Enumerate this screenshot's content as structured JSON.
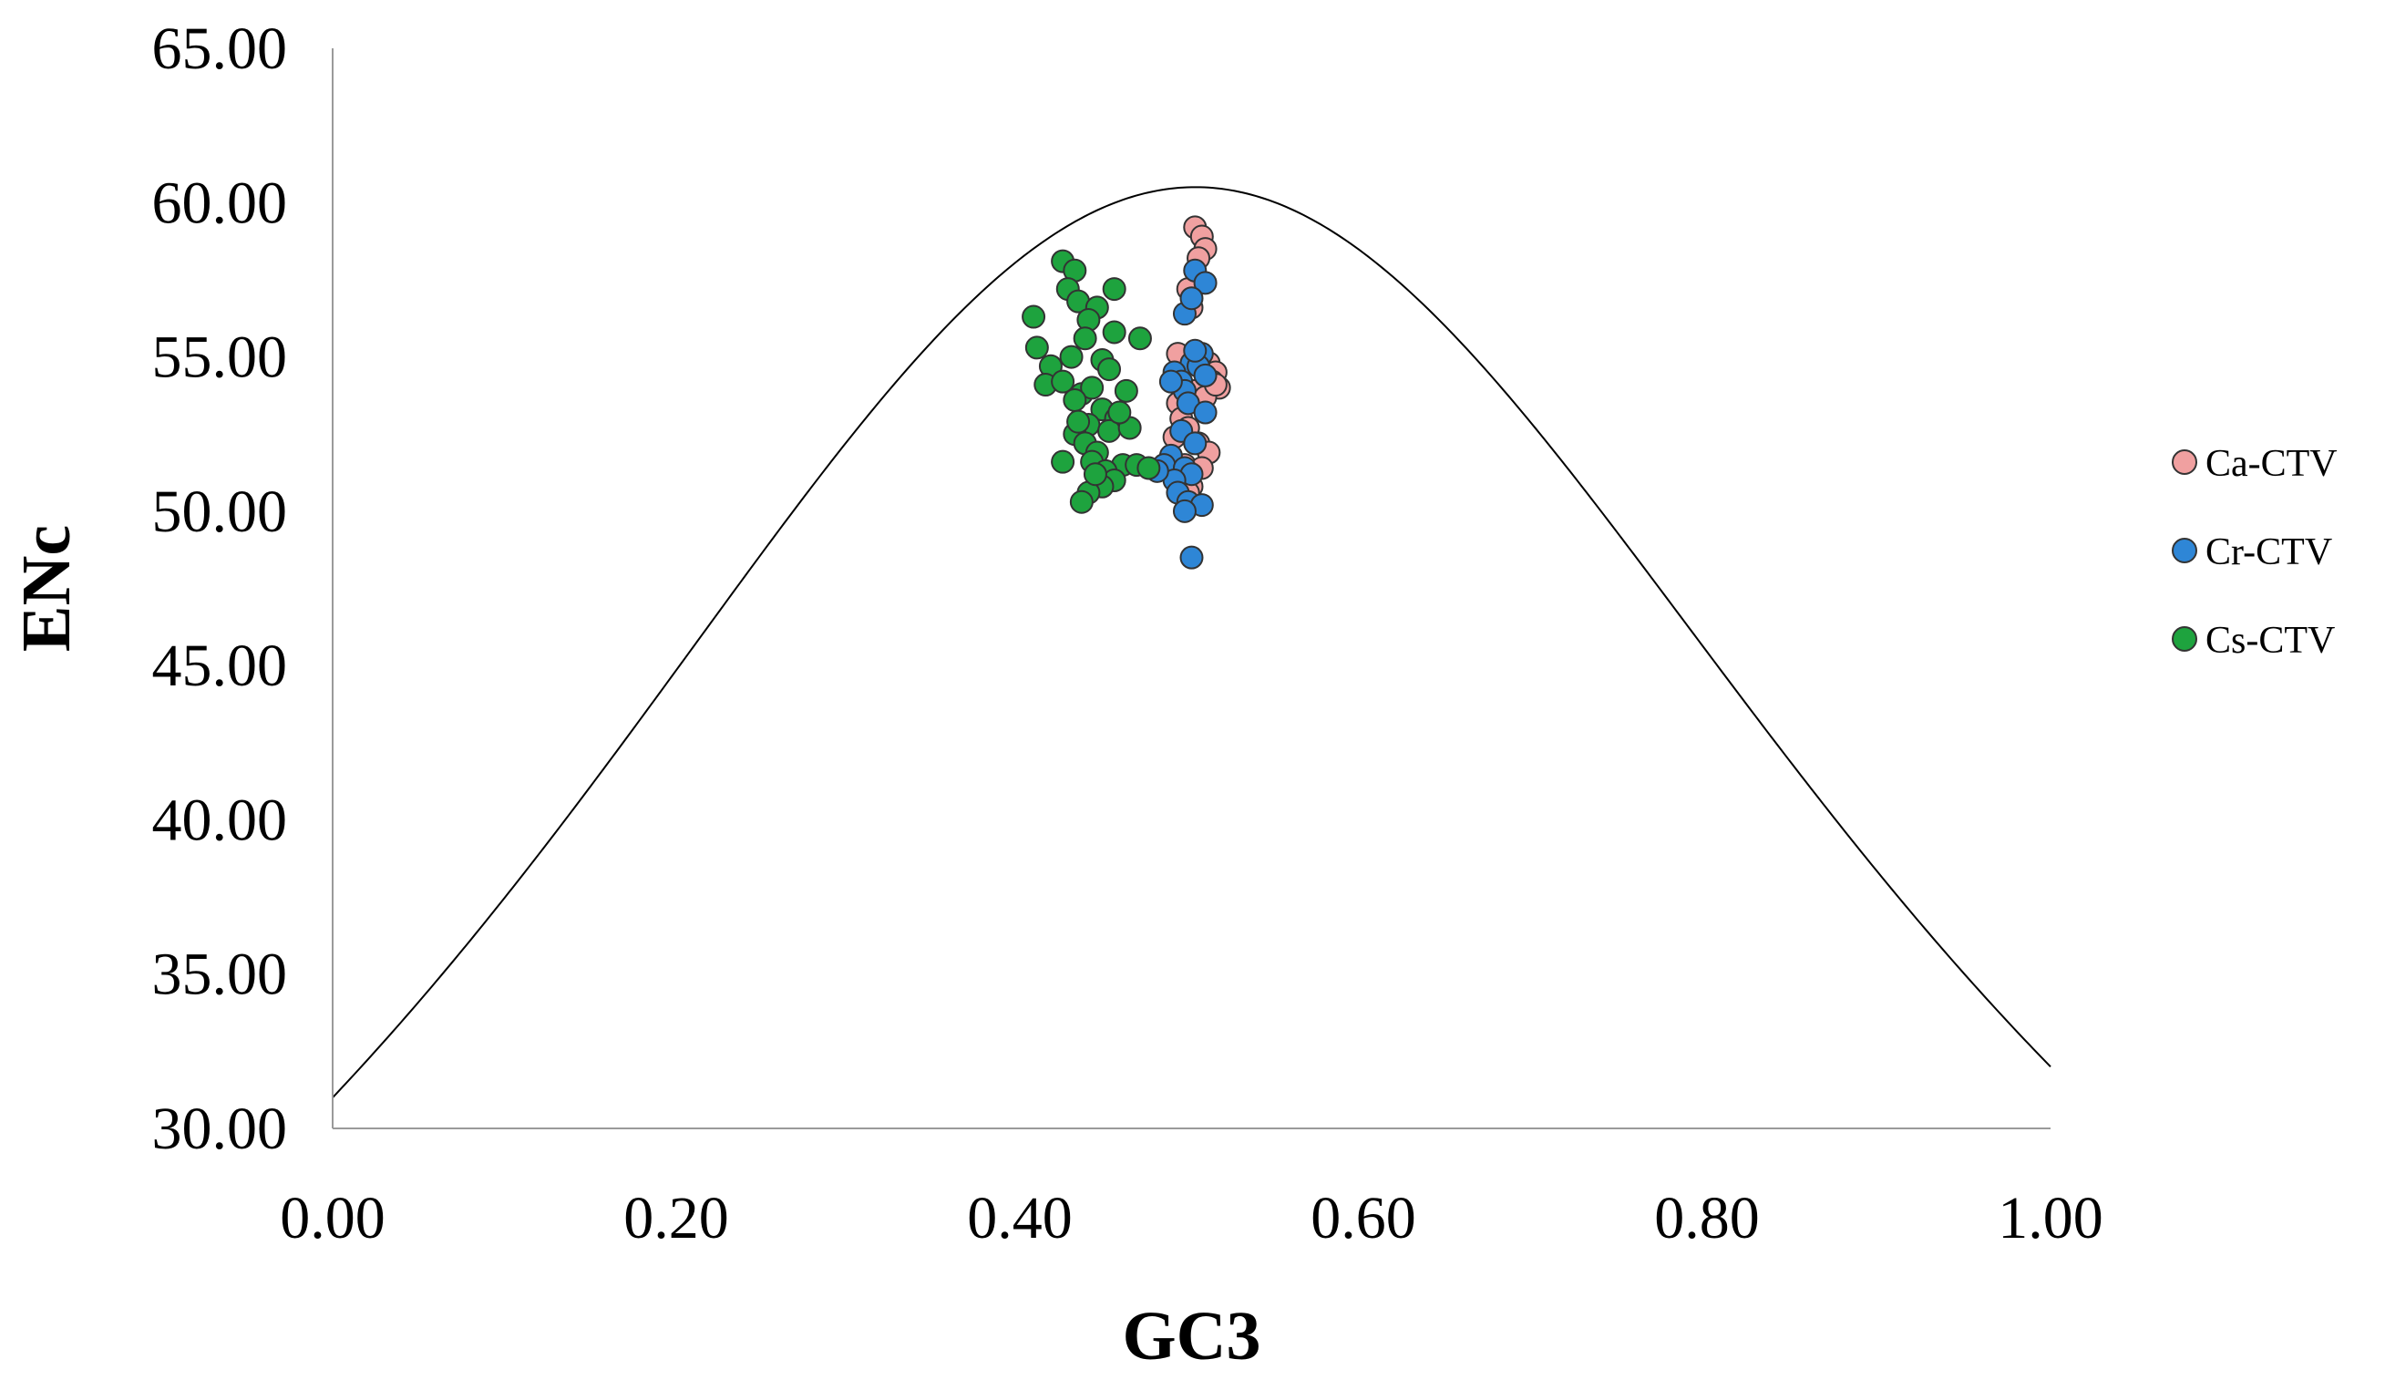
{
  "chart_data": {
    "type": "scatter",
    "title": "",
    "xlabel": "GC3",
    "ylabel": "ENc",
    "xlim": [
      0,
      1
    ],
    "ylim": [
      30,
      65
    ],
    "xticks": [
      "0.00",
      "0.20",
      "0.40",
      "0.60",
      "0.80",
      "1.00"
    ],
    "yticks": [
      "30.00",
      "35.00",
      "40.00",
      "45.00",
      "50.00",
      "55.00",
      "60.00",
      "65.00"
    ],
    "grid": false,
    "legend_position": "right",
    "expected_curve": {
      "description": "ENc = 2 + GC3 + 29/(GC3^2 + (1-GC3)^2)",
      "color": "#000000"
    },
    "series": [
      {
        "name": "Ca-CTV",
        "color": "#f0a0a0",
        "points": [
          [
            0.502,
            59.2
          ],
          [
            0.506,
            58.9
          ],
          [
            0.508,
            58.5
          ],
          [
            0.504,
            58.2
          ],
          [
            0.498,
            57.2
          ],
          [
            0.5,
            56.6
          ],
          [
            0.496,
            55.0
          ],
          [
            0.5,
            54.9
          ],
          [
            0.51,
            54.8
          ],
          [
            0.514,
            54.5
          ],
          [
            0.512,
            54.2
          ],
          [
            0.516,
            54.0
          ],
          [
            0.502,
            53.9
          ],
          [
            0.508,
            53.7
          ],
          [
            0.492,
            53.5
          ],
          [
            0.494,
            53.0
          ],
          [
            0.498,
            52.7
          ],
          [
            0.49,
            52.4
          ],
          [
            0.504,
            52.2
          ],
          [
            0.51,
            51.9
          ],
          [
            0.496,
            51.5
          ],
          [
            0.506,
            51.4
          ],
          [
            0.5,
            50.8
          ],
          [
            0.498,
            50.6
          ],
          [
            0.488,
            51.6
          ],
          [
            0.514,
            54.1
          ],
          [
            0.505,
            55.0
          ],
          [
            0.492,
            55.1
          ]
        ]
      },
      {
        "name": "Cr-CTV",
        "color": "#2e86d6",
        "points": [
          [
            0.502,
            57.8
          ],
          [
            0.508,
            57.4
          ],
          [
            0.496,
            56.4
          ],
          [
            0.5,
            56.9
          ],
          [
            0.506,
            55.1
          ],
          [
            0.5,
            54.8
          ],
          [
            0.49,
            54.5
          ],
          [
            0.494,
            54.2
          ],
          [
            0.504,
            54.7
          ],
          [
            0.508,
            54.4
          ],
          [
            0.496,
            53.9
          ],
          [
            0.498,
            53.5
          ],
          [
            0.508,
            53.2
          ],
          [
            0.494,
            52.6
          ],
          [
            0.502,
            52.2
          ],
          [
            0.488,
            51.8
          ],
          [
            0.484,
            51.5
          ],
          [
            0.496,
            51.4
          ],
          [
            0.5,
            51.2
          ],
          [
            0.49,
            51.0
          ],
          [
            0.492,
            50.6
          ],
          [
            0.498,
            50.3
          ],
          [
            0.506,
            50.2
          ],
          [
            0.496,
            50.0
          ],
          [
            0.5,
            48.5
          ],
          [
            0.48,
            51.3
          ],
          [
            0.488,
            54.2
          ],
          [
            0.502,
            55.2
          ]
        ]
      },
      {
        "name": "Cs-CTV",
        "color": "#1ea33e",
        "points": [
          [
            0.425,
            58.1
          ],
          [
            0.432,
            57.8
          ],
          [
            0.428,
            57.2
          ],
          [
            0.434,
            56.8
          ],
          [
            0.445,
            56.6
          ],
          [
            0.44,
            56.2
          ],
          [
            0.455,
            57.2
          ],
          [
            0.408,
            56.3
          ],
          [
            0.455,
            55.8
          ],
          [
            0.438,
            55.6
          ],
          [
            0.47,
            55.6
          ],
          [
            0.41,
            55.3
          ],
          [
            0.43,
            55.0
          ],
          [
            0.448,
            54.9
          ],
          [
            0.418,
            54.7
          ],
          [
            0.452,
            54.6
          ],
          [
            0.415,
            54.1
          ],
          [
            0.425,
            54.2
          ],
          [
            0.436,
            53.8
          ],
          [
            0.442,
            54.0
          ],
          [
            0.462,
            53.9
          ],
          [
            0.432,
            53.6
          ],
          [
            0.448,
            53.3
          ],
          [
            0.456,
            53.0
          ],
          [
            0.44,
            52.8
          ],
          [
            0.452,
            52.6
          ],
          [
            0.464,
            52.7
          ],
          [
            0.432,
            52.5
          ],
          [
            0.438,
            52.2
          ],
          [
            0.445,
            51.9
          ],
          [
            0.46,
            51.5
          ],
          [
            0.468,
            51.5
          ],
          [
            0.475,
            51.4
          ],
          [
            0.425,
            51.6
          ],
          [
            0.442,
            51.6
          ],
          [
            0.45,
            51.3
          ],
          [
            0.455,
            51.0
          ],
          [
            0.448,
            50.8
          ],
          [
            0.44,
            50.6
          ],
          [
            0.436,
            50.3
          ],
          [
            0.444,
            51.2
          ],
          [
            0.434,
            52.9
          ],
          [
            0.458,
            53.2
          ]
        ]
      }
    ]
  }
}
